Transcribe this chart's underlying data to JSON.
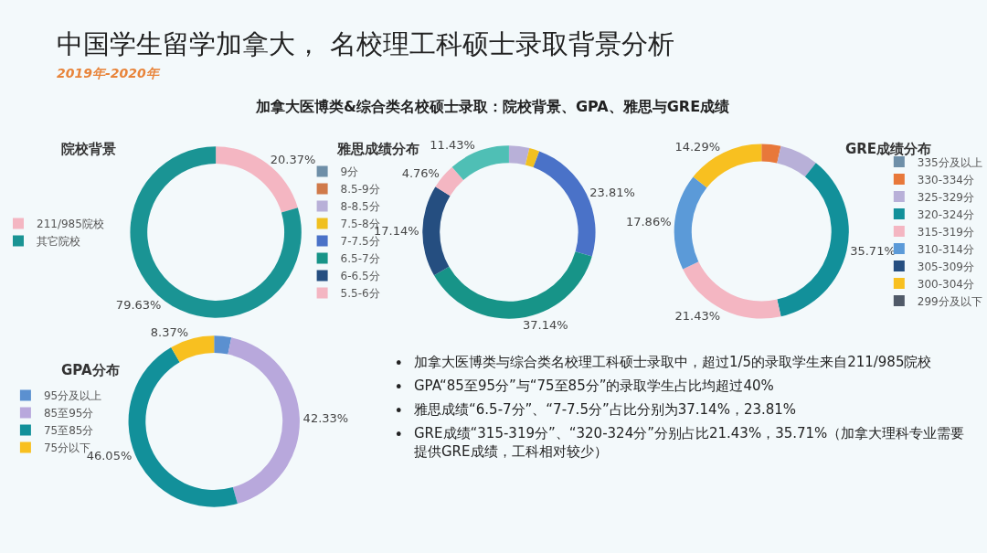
{
  "chart_data": [
    {
      "type": "other",
      "title": "中国学生留学加拿大， 名校理工科硕士录取背景分析",
      "subtitle": "2019年-2020年",
      "annotations": [
        "加拿大医博类&综合类名校硕士录取：院校背景、GPA、雅思与GRE成绩",
        "加拿大医博类与综合类名校理工科硕士录取中，超过1/5的录取学生来自211/985院校",
        "GPA“85至95分”与“75至85分”的录取学生占比均超过40%",
        "雅思成绩“6.5-7分”、“7-7.5分”占比分别为37.14%，23.81%",
        "GRE成绩“315-319分”、“320-324分”分别占比21.43%，35.71%（加拿大理科专业需要提供GRE成绩，工科相对较少）"
      ]
    },
    {
      "type": "donut",
      "title": "院校背景",
      "legend": "left",
      "categories": [
        "211/985院校",
        "其它院校"
      ],
      "values": [
        20.37,
        79.63
      ],
      "colors": [
        "#f4b6c2",
        "#1a9494"
      ],
      "value_labels": [
        "20.37%",
        "79.63%"
      ]
    },
    {
      "type": "donut",
      "title": "雅思成绩分布",
      "legend": "left",
      "categories": [
        "9分",
        "8.5-9分",
        "8-8.5分",
        "7.5-8分",
        "7-7.5分",
        "6.5-7分",
        "6-6.5分",
        "5.5-6分",
        null
      ],
      "values": [
        0,
        0,
        3.81,
        1.9,
        23.81,
        37.14,
        17.14,
        4.76,
        11.43
      ],
      "colors": [
        "#6e8fa8",
        "#d07a4a",
        "#b8b0d8",
        "#f0c020",
        "#4a72c8",
        "#179488",
        "#254e80",
        "#f4b6c2",
        "#4fbfb5"
      ],
      "value_labels": [
        null,
        null,
        null,
        null,
        "23.81%",
        "37.14%",
        "17.14%",
        "4.76%",
        "11.43%"
      ]
    },
    {
      "type": "donut",
      "title": "GRE成绩分布",
      "legend": "right",
      "categories": [
        "335分及以上",
        "330-334分",
        "325-329分",
        "320-324分",
        "315-319分",
        "310-314分",
        "305-309分",
        "300-304分",
        "299分及以下"
      ],
      "values": [
        0,
        3.57,
        7.14,
        35.71,
        21.43,
        17.86,
        0,
        14.29,
        0
      ],
      "colors": [
        "#6e8fa8",
        "#e8783a",
        "#b8b0d8",
        "#12909a",
        "#f4b6c2",
        "#5b9ad8",
        "#254e80",
        "#f8c020",
        "#505a68"
      ],
      "value_labels": [
        null,
        null,
        null,
        "35.71%",
        "21.43%",
        "17.86%",
        null,
        "14.29%",
        null
      ]
    },
    {
      "type": "donut",
      "title": "GPA分布",
      "legend": "left",
      "categories": [
        "95分及以上",
        "85至95分",
        "75至85分",
        "75分以下"
      ],
      "values": [
        3.25,
        42.33,
        46.05,
        8.37
      ],
      "colors": [
        "#5b90d0",
        "#b8a8dc",
        "#12909a",
        "#f8c020"
      ],
      "value_labels": [
        null,
        "42.33%",
        "46.05%",
        "8.37%"
      ]
    }
  ]
}
